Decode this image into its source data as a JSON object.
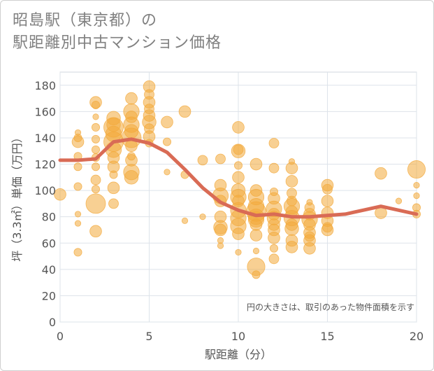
{
  "chart_data": {
    "type": "scatter",
    "title_lines": [
      "昭島駅（東京都）の",
      "駅距離別中古マンション価格"
    ],
    "xlabel": "駅距離（分）",
    "ylabel": "坪（3.3㎡）単価（万円）",
    "xlim": [
      0,
      20
    ],
    "ylim": [
      0,
      190
    ],
    "xticks": [
      "0",
      "5",
      "10",
      "15",
      "20"
    ],
    "yticks": [
      "0",
      "20",
      "40",
      "60",
      "80",
      "100",
      "120",
      "140",
      "160",
      "180"
    ],
    "annotation": "円の大きさは、取引のあった物件面積を示す",
    "grid": true,
    "colors": {
      "bubble": "#f2a93b",
      "line": "#d96b55",
      "grid": "#dde3ea"
    },
    "trend_line": {
      "x": [
        0,
        1,
        2,
        3,
        4,
        5,
        6,
        7,
        8,
        9,
        10,
        11,
        12,
        13,
        14,
        15,
        16,
        17,
        18,
        19,
        20
      ],
      "y": [
        123,
        123,
        124,
        137,
        139,
        136,
        129,
        116,
        102,
        91,
        85,
        81,
        82,
        80,
        80,
        81,
        82,
        85,
        88,
        85,
        82
      ]
    },
    "points": [
      [
        0,
        97,
        3
      ],
      [
        1,
        140,
        2
      ],
      [
        1,
        137,
        3
      ],
      [
        1,
        144,
        1.5
      ],
      [
        1,
        126,
        2
      ],
      [
        1,
        118,
        2
      ],
      [
        1,
        103,
        2
      ],
      [
        1,
        82,
        1.5
      ],
      [
        1,
        75,
        1.5
      ],
      [
        1,
        53,
        2
      ],
      [
        2,
        167,
        3
      ],
      [
        2,
        165,
        2
      ],
      [
        2,
        156,
        1.5
      ],
      [
        2,
        148,
        2
      ],
      [
        2,
        139,
        2
      ],
      [
        2,
        131,
        2
      ],
      [
        2,
        125,
        2
      ],
      [
        2,
        118,
        2
      ],
      [
        2,
        108,
        2.5
      ],
      [
        2,
        101,
        2
      ],
      [
        2,
        90,
        5
      ],
      [
        2,
        69,
        3
      ],
      [
        3,
        155,
        3.5
      ],
      [
        3,
        150,
        3.5
      ],
      [
        3,
        148,
        5
      ],
      [
        3,
        143,
        4
      ],
      [
        3,
        137,
        5
      ],
      [
        3,
        131,
        4
      ],
      [
        3,
        125,
        3
      ],
      [
        3,
        118,
        3
      ],
      [
        3,
        112,
        2
      ],
      [
        3,
        102,
        3
      ],
      [
        3,
        90,
        2.5
      ],
      [
        4,
        170,
        3
      ],
      [
        4,
        160,
        4
      ],
      [
        4,
        156,
        3
      ],
      [
        4,
        150,
        4
      ],
      [
        4,
        145,
        3.5
      ],
      [
        4,
        140,
        5
      ],
      [
        4,
        134,
        3
      ],
      [
        4,
        123,
        3
      ],
      [
        4,
        114,
        4
      ],
      [
        4,
        110,
        3.5
      ],
      [
        4,
        126,
        2
      ],
      [
        5,
        179,
        3
      ],
      [
        5,
        173,
        2.5
      ],
      [
        5,
        167,
        3
      ],
      [
        5,
        162,
        2.5
      ],
      [
        5,
        157,
        3
      ],
      [
        5,
        152,
        3.5
      ],
      [
        5,
        147,
        2.5
      ],
      [
        5,
        141,
        3
      ],
      [
        5,
        136,
        2
      ],
      [
        6,
        152,
        3
      ],
      [
        6,
        137,
        2
      ],
      [
        6,
        114,
        1.5
      ],
      [
        7,
        160,
        3
      ],
      [
        7,
        112,
        2
      ],
      [
        7,
        77,
        1.5
      ],
      [
        8,
        123,
        2.5
      ],
      [
        8,
        80,
        1.5
      ],
      [
        9,
        124,
        2.5
      ],
      [
        9,
        104,
        3
      ],
      [
        9,
        96,
        4
      ],
      [
        9,
        92,
        3
      ],
      [
        9,
        80,
        3
      ],
      [
        9,
        72,
        3.5
      ],
      [
        9,
        70,
        3
      ],
      [
        9,
        62,
        1.5
      ],
      [
        9,
        58,
        1.5
      ],
      [
        10,
        148,
        3
      ],
      [
        10,
        131,
        2.5
      ],
      [
        10,
        130,
        3.5
      ],
      [
        10,
        119,
        2
      ],
      [
        10,
        110,
        3
      ],
      [
        10,
        100,
        3.5
      ],
      [
        10,
        95,
        4
      ],
      [
        10,
        92,
        3
      ],
      [
        10,
        85,
        4
      ],
      [
        10,
        79,
        4
      ],
      [
        10,
        73,
        4
      ],
      [
        10,
        67,
        3
      ],
      [
        10,
        53,
        1.5
      ],
      [
        11,
        120,
        3
      ],
      [
        11,
        100,
        3
      ],
      [
        11,
        95,
        4
      ],
      [
        11,
        88,
        4
      ],
      [
        11,
        84,
        5
      ],
      [
        11,
        80,
        4
      ],
      [
        11,
        78,
        4
      ],
      [
        11,
        74,
        3
      ],
      [
        11,
        66,
        3
      ],
      [
        11,
        54,
        1.5
      ],
      [
        11,
        42,
        4.5
      ],
      [
        11,
        36,
        2
      ],
      [
        12,
        136,
        2.5
      ],
      [
        12,
        117,
        2.5
      ],
      [
        12,
        99,
        2
      ],
      [
        12,
        94,
        3
      ],
      [
        12,
        86,
        4
      ],
      [
        12,
        82,
        3
      ],
      [
        12,
        79,
        3.5
      ],
      [
        12,
        74,
        3
      ],
      [
        12,
        70,
        3
      ],
      [
        12,
        64,
        3
      ],
      [
        12,
        56,
        2
      ],
      [
        12,
        48,
        2.5
      ],
      [
        13,
        122,
        1.5
      ],
      [
        13,
        117,
        3
      ],
      [
        13,
        107,
        3
      ],
      [
        13,
        98,
        2.5
      ],
      [
        13,
        92,
        2.5
      ],
      [
        13,
        88,
        4
      ],
      [
        13,
        84,
        3
      ],
      [
        13,
        79,
        4
      ],
      [
        13,
        74,
        3
      ],
      [
        13,
        71,
        3.5
      ],
      [
        13,
        62,
        3
      ],
      [
        13,
        57,
        3
      ],
      [
        14,
        91,
        1.5
      ],
      [
        14,
        87,
        2.5
      ],
      [
        14,
        82,
        3
      ],
      [
        14,
        78,
        4
      ],
      [
        14,
        74,
        3
      ],
      [
        14,
        68,
        3
      ],
      [
        14,
        65,
        2.5
      ],
      [
        14,
        62,
        3
      ],
      [
        14,
        56,
        3
      ],
      [
        15,
        104,
        3
      ],
      [
        15,
        101,
        2.5
      ],
      [
        15,
        92,
        3
      ],
      [
        15,
        83,
        3
      ],
      [
        15,
        77,
        3
      ],
      [
        15,
        72,
        2.5
      ],
      [
        15,
        70,
        3
      ],
      [
        18,
        113,
        3
      ],
      [
        18,
        83,
        3
      ],
      [
        19,
        92,
        1.5
      ],
      [
        20,
        116,
        4.5
      ],
      [
        20,
        104,
        1.5
      ],
      [
        20,
        96,
        1.5
      ],
      [
        20,
        87,
        2
      ],
      [
        20,
        82,
        2
      ]
    ]
  }
}
